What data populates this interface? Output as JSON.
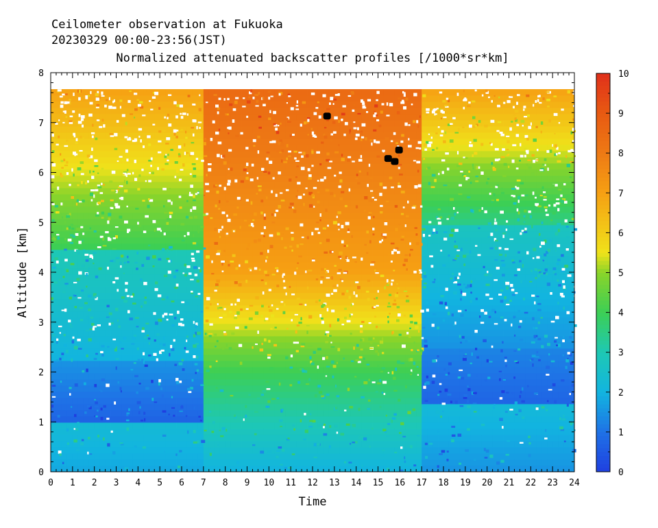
{
  "chart_data": {
    "type": "heatmap",
    "title_lines": [
      "Ceilometer observation at Fukuoka",
      "20230329  00:00-23:56(JST)"
    ],
    "subtitle": "Normalized attenuated backscatter profiles [/1000*sr*km]",
    "xlabel": "Time",
    "ylabel": "Altitude [km]",
    "xlim": [
      0,
      24
    ],
    "ylim": [
      0,
      8
    ],
    "x_ticks": [
      "0",
      "1",
      "2",
      "3",
      "4",
      "5",
      "6",
      "7",
      "8",
      "9",
      "10",
      "11",
      "12",
      "13",
      "14",
      "15",
      "16",
      "17",
      "18",
      "19",
      "20",
      "21",
      "22",
      "23",
      "24"
    ],
    "y_ticks": [
      "0",
      "1",
      "2",
      "3",
      "4",
      "5",
      "6",
      "7",
      "8"
    ],
    "data_top_altitude": 7.67,
    "colorbar": {
      "range": [
        0,
        10
      ],
      "ticks": [
        "0",
        "1",
        "2",
        "3",
        "4",
        "5",
        "6",
        "7",
        "8",
        "9",
        "10"
      ],
      "stops": [
        {
          "value": 0,
          "color": "#1f3fe0"
        },
        {
          "value": 1,
          "color": "#1f72e6"
        },
        {
          "value": 2,
          "color": "#12b4e0"
        },
        {
          "value": 3,
          "color": "#1ec8b4"
        },
        {
          "value": 4,
          "color": "#3ccf55"
        },
        {
          "value": 5,
          "color": "#8ad42a"
        },
        {
          "value": 5.5,
          "color": "#f0e21a"
        },
        {
          "value": 7,
          "color": "#f6a013"
        },
        {
          "value": 8,
          "color": "#ee7a14"
        },
        {
          "value": 9,
          "color": "#e85a12"
        },
        {
          "value": 10,
          "color": "#e0301a"
        }
      ]
    },
    "field_description": [
      {
        "time": [
          0,
          7
        ],
        "altitude_km": [
          0,
          1.0
        ],
        "backscatter": [
          1.8,
          2.3
        ]
      },
      {
        "time": [
          0,
          7
        ],
        "altitude_km": [
          1.0,
          2.2
        ],
        "backscatter": [
          0.7,
          1.5
        ]
      },
      {
        "time": [
          0,
          7
        ],
        "altitude_km": [
          2.2,
          4.5
        ],
        "backscatter": [
          2.0,
          3.0
        ]
      },
      {
        "time": [
          0,
          7
        ],
        "altitude_km": [
          4.5,
          7.67
        ],
        "backscatter": [
          4.0,
          7.0
        ]
      },
      {
        "time": [
          7,
          17
        ],
        "altitude_km": [
          0,
          2.0
        ],
        "backscatter": [
          2.0,
          4.0
        ]
      },
      {
        "time": [
          7,
          17
        ],
        "altitude_km": [
          2.0,
          4.0
        ],
        "backscatter": [
          4.0,
          7.0
        ]
      },
      {
        "time": [
          7,
          17
        ],
        "altitude_km": [
          4.0,
          7.67
        ],
        "backscatter": [
          7.0,
          8.5
        ]
      },
      {
        "time": [
          17,
          24
        ],
        "altitude_km": [
          0,
          1.3
        ],
        "backscatter": [
          1.5,
          2.2
        ]
      },
      {
        "time": [
          17,
          24
        ],
        "altitude_km": [
          1.3,
          2.5
        ],
        "backscatter": [
          0.7,
          1.3
        ]
      },
      {
        "time": [
          17,
          24
        ],
        "altitude_km": [
          2.5,
          5.0
        ],
        "backscatter": [
          1.5,
          2.8
        ]
      },
      {
        "time": [
          17,
          24
        ],
        "altitude_km": [
          5.0,
          7.67
        ],
        "backscatter": [
          3.5,
          7.0
        ]
      }
    ],
    "saturated_spots": [
      {
        "time": 12.65,
        "altitude_km": 7.13
      },
      {
        "time": 15.45,
        "altitude_km": 6.28
      },
      {
        "time": 15.75,
        "altitude_km": 6.22
      },
      {
        "time": 15.95,
        "altitude_km": 6.45
      }
    ]
  }
}
